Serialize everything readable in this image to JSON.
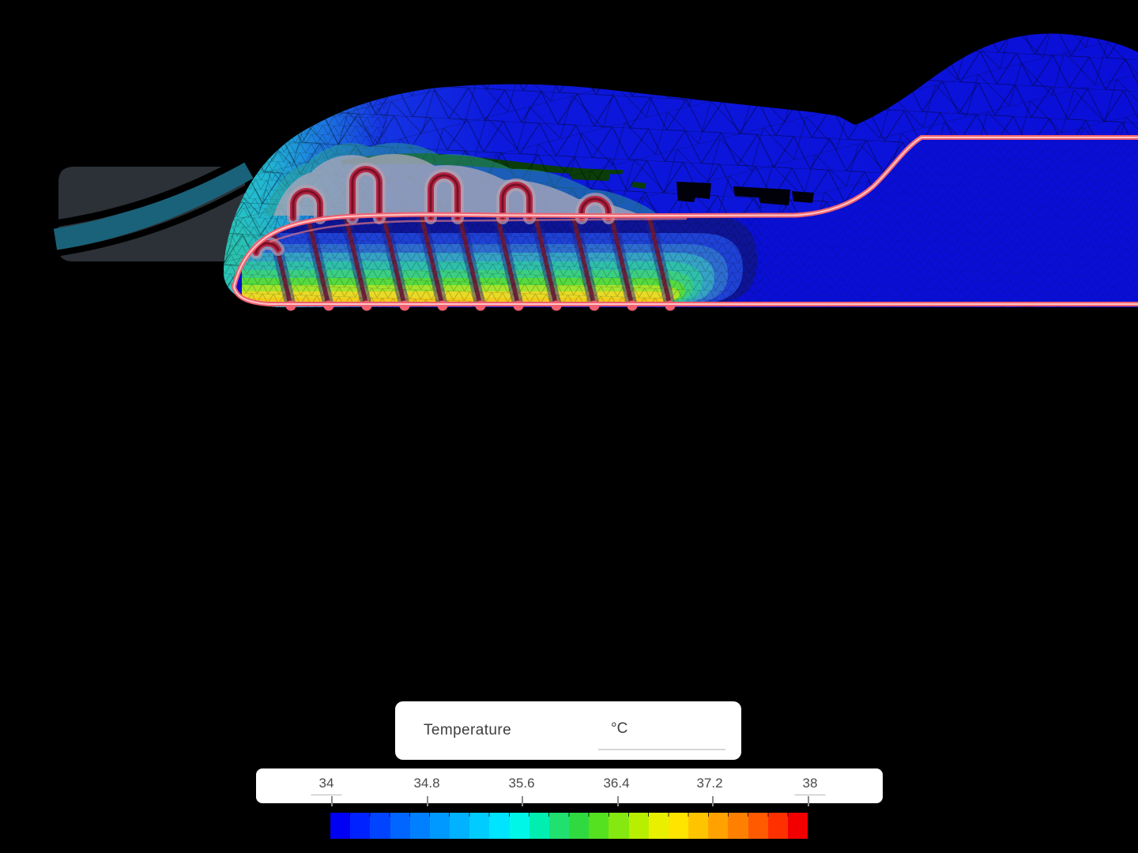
{
  "window": {
    "background": "#000000"
  },
  "legend": {
    "title": "Temperature",
    "unit": "°C"
  },
  "colorbar": {
    "tick_labels": [
      "34",
      "34.8",
      "35.6",
      "36.4",
      "37.2",
      "38"
    ],
    "min_label": "34",
    "max_label": "38",
    "scale": {
      "min": 34,
      "max": 38,
      "unit": "°C",
      "ticks": [
        34,
        34.8,
        35.6,
        36.4,
        37.2,
        38
      ]
    },
    "segment_colors": [
      "#0000f2",
      "#0022ff",
      "#0044ff",
      "#0066ff",
      "#0080ff",
      "#0099ff",
      "#00b2ff",
      "#00ccff",
      "#00e4ff",
      "#00f7e8",
      "#00eeb0",
      "#20e070",
      "#30d940",
      "#55e020",
      "#85e810",
      "#b8ef00",
      "#e8f000",
      "#ffe400",
      "#ffc400",
      "#ffa200",
      "#ff8000",
      "#ff5a00",
      "#ff3000",
      "#f20000"
    ]
  },
  "colors": {
    "section_base": "#0a0fd6",
    "bands": [
      "#0e1496",
      "#1e41d6",
      "#2e6dd0",
      "#35a2c6",
      "#2fbfab",
      "#3bcf83",
      "#55da40",
      "#a4e42c",
      "#e8da26",
      "#f2cb1b"
    ],
    "outline_pink": "#ef6070",
    "outline_core": "#ffc6c6",
    "wire_halo": "#b9a0ae",
    "wire_red": "#b42746",
    "wire_dark": "#6f0c1e",
    "trace_halo": "#202090",
    "trace_core": "#6d1836",
    "halo_teal": "#2aa392",
    "halo_gray": "#a9a6bb",
    "shoe_charcoal": "#2b3136",
    "shoe_teal": "#19627a",
    "mesh_green_patch": "#0a3d08"
  }
}
